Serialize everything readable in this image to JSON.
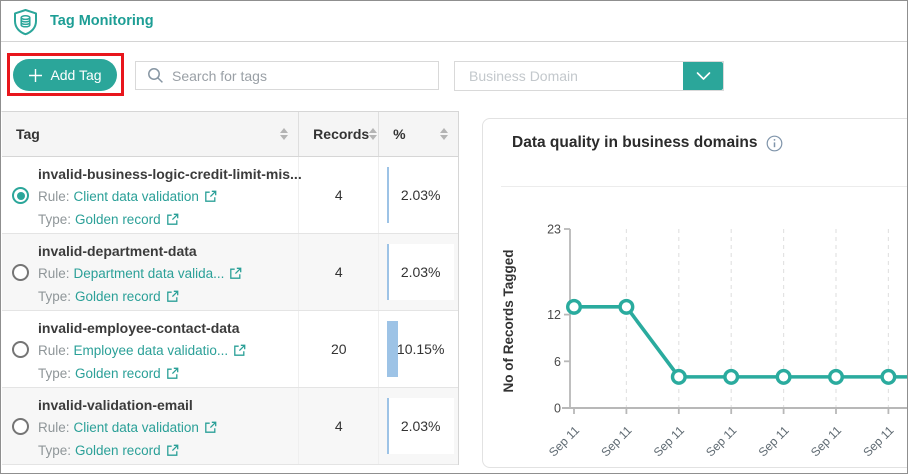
{
  "header": {
    "title": "Tag Monitoring",
    "icon": "shield-database-icon"
  },
  "toolbar": {
    "add_tag": {
      "label": "Add Tag",
      "icon": "plus-icon"
    },
    "search": {
      "placeholder": "Search for tags",
      "icon": "search-icon"
    },
    "domain_filter": {
      "placeholder": "Business Domain",
      "icon": "chevron-down-icon"
    }
  },
  "table": {
    "columns": [
      {
        "label": "Tag"
      },
      {
        "label": "Records"
      },
      {
        "label": "%"
      }
    ],
    "rows": [
      {
        "selected": true,
        "tag": "invalid-business-logic-credit-limit-mis...",
        "rule_prefix": "Rule:",
        "rule_link": "Client data validation",
        "type_prefix": "Type:",
        "type_link": "Golden record",
        "records": "4",
        "percent": "2.03%",
        "percent_value": 2.03
      },
      {
        "selected": false,
        "tag": "invalid-department-data",
        "rule_prefix": "Rule:",
        "rule_link": "Department data valida...",
        "type_prefix": "Type:",
        "type_link": "Golden record",
        "records": "4",
        "percent": "2.03%",
        "percent_value": 2.03
      },
      {
        "selected": false,
        "tag": "invalid-employee-contact-data",
        "rule_prefix": "Rule:",
        "rule_link": "Employee data validatio...",
        "type_prefix": "Type:",
        "type_link": "Golden record",
        "records": "20",
        "percent": "10.15%",
        "percent_value": 10.15
      },
      {
        "selected": false,
        "tag": "invalid-validation-email",
        "rule_prefix": "Rule:",
        "rule_link": "Client data validation",
        "type_prefix": "Type:",
        "type_link": "Golden record",
        "records": "4",
        "percent": "2.03%",
        "percent_value": 2.03
      }
    ]
  },
  "panel": {
    "title": "Data quality in business domains",
    "info_icon": "info-icon"
  },
  "chart_data": {
    "type": "line",
    "title": "Data quality in business domains",
    "xlabel": "",
    "ylabel": "No of Records Tagged",
    "categories": [
      "Sep 11",
      "Sep 11",
      "Sep 11",
      "Sep 11",
      "Sep 11",
      "Sep 11",
      "Sep 11"
    ],
    "values": [
      13,
      13,
      4,
      4,
      4,
      4,
      4
    ],
    "yticks": [
      0,
      6,
      12,
      23
    ],
    "ylim": [
      0,
      23
    ],
    "line_color": "#2aab9e",
    "marker": "open-circle",
    "grid": "vertical-dashed",
    "legend": "none"
  },
  "colors": {
    "brand_teal": "#2ba69a",
    "link_teal": "#2ba098",
    "bar_blue": "#9dc3e6",
    "highlight_red": "#e8161c",
    "table_header_bg": "#f5f5f5",
    "row_stripe_bg": "#f7f7f7"
  }
}
